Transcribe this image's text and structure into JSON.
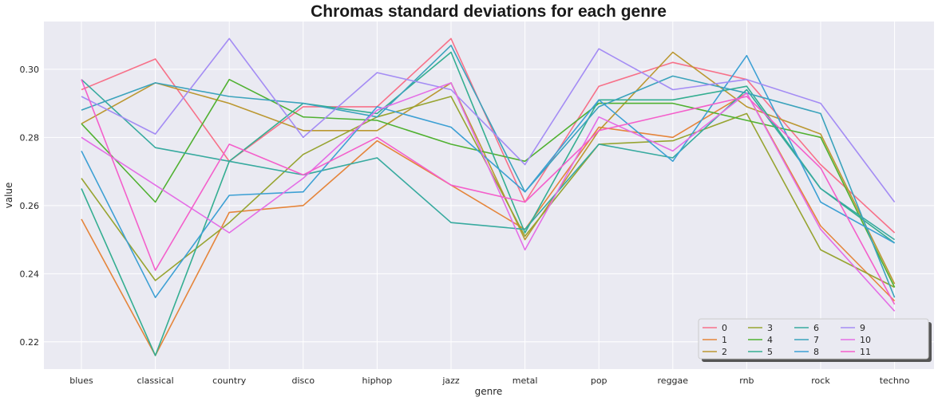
{
  "chart_data": {
    "type": "line",
    "title": "Chromas standard deviations for each genre",
    "xlabel": "genre",
    "ylabel": "value",
    "categories": [
      "blues",
      "classical",
      "country",
      "disco",
      "hiphop",
      "jazz",
      "metal",
      "pop",
      "reggae",
      "rnb",
      "rock",
      "techno"
    ],
    "ylim": [
      0.212,
      0.314
    ],
    "yticks": [
      0.22,
      0.24,
      0.26,
      0.28,
      0.3
    ],
    "ytick_labels": [
      "0.22",
      "0.24",
      "0.26",
      "0.28",
      "0.30"
    ],
    "grid": true,
    "legend_position": "bottom-right",
    "legend_columns": 5,
    "series": [
      {
        "name": "0",
        "color": "#f77189",
        "values": [
          0.294,
          0.303,
          0.273,
          0.289,
          0.289,
          0.309,
          0.261,
          0.295,
          0.302,
          0.297,
          0.272,
          0.252
        ]
      },
      {
        "name": "1",
        "color": "#e5853b",
        "values": [
          0.256,
          0.216,
          0.258,
          0.26,
          0.279,
          0.266,
          0.253,
          0.283,
          0.28,
          0.293,
          0.254,
          0.232
        ]
      },
      {
        "name": "2",
        "color": "#bb9832",
        "values": [
          0.284,
          0.296,
          0.29,
          0.282,
          0.282,
          0.296,
          0.25,
          0.282,
          0.305,
          0.289,
          0.281,
          0.237
        ]
      },
      {
        "name": "3",
        "color": "#97a431",
        "values": [
          0.268,
          0.238,
          0.255,
          0.275,
          0.286,
          0.292,
          0.251,
          0.278,
          0.279,
          0.287,
          0.247,
          0.236
        ]
      },
      {
        "name": "4",
        "color": "#50b131",
        "values": [
          0.284,
          0.261,
          0.297,
          0.286,
          0.285,
          0.278,
          0.273,
          0.29,
          0.29,
          0.285,
          0.28,
          0.236
        ]
      },
      {
        "name": "5",
        "color": "#34ae91",
        "values": [
          0.265,
          0.216,
          0.273,
          0.29,
          0.287,
          0.305,
          0.252,
          0.291,
          0.291,
          0.295,
          0.265,
          0.249
        ]
      },
      {
        "name": "6",
        "color": "#37aa9f",
        "values": [
          0.297,
          0.277,
          0.273,
          0.269,
          0.274,
          0.255,
          0.253,
          0.278,
          0.274,
          0.294,
          0.265,
          0.25
        ]
      },
      {
        "name": "7",
        "color": "#3ba3bc",
        "values": [
          0.288,
          0.296,
          0.292,
          0.29,
          0.286,
          0.307,
          0.264,
          0.289,
          0.298,
          0.293,
          0.287,
          0.233
        ]
      },
      {
        "name": "8",
        "color": "#3da0d4",
        "values": [
          0.276,
          0.233,
          0.263,
          0.264,
          0.289,
          0.283,
          0.264,
          0.291,
          0.273,
          0.304,
          0.261,
          0.249
        ]
      },
      {
        "name": "9",
        "color": "#a48cf4",
        "values": [
          0.292,
          0.281,
          0.309,
          0.28,
          0.299,
          0.294,
          0.272,
          0.306,
          0.294,
          0.297,
          0.29,
          0.261
        ]
      },
      {
        "name": "10",
        "color": "#e46ee6",
        "values": [
          0.28,
          0.266,
          0.252,
          0.268,
          0.288,
          0.296,
          0.247,
          0.286,
          0.276,
          0.293,
          0.253,
          0.229
        ]
      },
      {
        "name": "11",
        "color": "#f45fcb",
        "values": [
          0.297,
          0.241,
          0.278,
          0.269,
          0.28,
          0.266,
          0.261,
          0.282,
          0.287,
          0.292,
          0.271,
          0.231
        ]
      }
    ]
  }
}
